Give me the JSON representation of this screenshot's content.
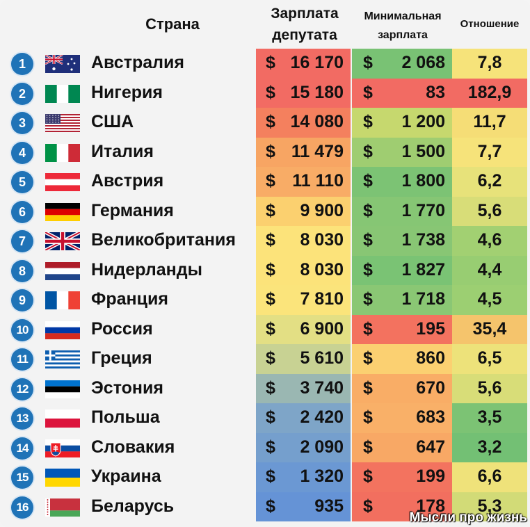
{
  "headers": {
    "country": "Страна",
    "salary": [
      "Зарплата",
      "депутата"
    ],
    "min_wage": [
      "Минимальная",
      "зарплата"
    ],
    "ratio": "Отношение"
  },
  "currency": "$",
  "rows": [
    {
      "rank": "1",
      "flag": "australia",
      "country": "Австралия",
      "salary": "16 170",
      "min_wage": "2 068",
      "ratio": "7,8",
      "salary_color": "#f26b63",
      "min_color": "#79c274",
      "ratio_color": "#f6e37a"
    },
    {
      "rank": "2",
      "flag": "nigeria",
      "country": "Нигерия",
      "salary": "15 180",
      "min_wage": "83",
      "ratio": "182,9",
      "salary_color": "#f26b63",
      "min_color": "#f26b63",
      "ratio_color": "#f26b63"
    },
    {
      "rank": "3",
      "flag": "usa",
      "country": "США",
      "salary": "14 080",
      "min_wage": "1 200",
      "ratio": "11,7",
      "salary_color": "#f4805e",
      "min_color": "#c6d86e",
      "ratio_color": "#f5dd76"
    },
    {
      "rank": "4",
      "flag": "italy",
      "country": "Италия",
      "salary": "11 479",
      "min_wage": "1 500",
      "ratio": "7,7",
      "salary_color": "#f7a563",
      "min_color": "#9fcd71",
      "ratio_color": "#f6e37a"
    },
    {
      "rank": "5",
      "flag": "austria",
      "country": "Австрия",
      "salary": "11 110",
      "min_wage": "1 800",
      "ratio": "6,2",
      "salary_color": "#f8ac66",
      "min_color": "#7cc374",
      "ratio_color": "#e7e27a"
    },
    {
      "rank": "6",
      "flag": "germany",
      "country": "Германия",
      "salary": "9 900",
      "min_wage": "1 770",
      "ratio": "5,6",
      "salary_color": "#fbd06f",
      "min_color": "#86c674",
      "ratio_color": "#d8dd78"
    },
    {
      "rank": "7",
      "flag": "uk",
      "country": "Великобритания",
      "salary": "8 030",
      "min_wage": "1 738",
      "ratio": "4,6",
      "salary_color": "#fce37a",
      "min_color": "#88c674",
      "ratio_color": "#a2d072"
    },
    {
      "rank": "8",
      "flag": "netherlands",
      "country": "Нидерланды",
      "salary": "8 030",
      "min_wage": "1 827",
      "ratio": "4,4",
      "salary_color": "#fce37a",
      "min_color": "#7ac374",
      "ratio_color": "#98cd72"
    },
    {
      "rank": "9",
      "flag": "france",
      "country": "Франция",
      "salary": "7 810",
      "min_wage": "1 718",
      "ratio": "4,5",
      "salary_color": "#fbe47b",
      "min_color": "#8ac774",
      "ratio_color": "#9ccf72"
    },
    {
      "rank": "10",
      "flag": "russia",
      "country": "Россия",
      "salary": "6 900",
      "min_wage": "195",
      "ratio": "35,4",
      "salary_color": "#e3df84",
      "min_color": "#f3725f",
      "ratio_color": "#f5c46c"
    },
    {
      "rank": "11",
      "flag": "greece",
      "country": "Греция",
      "salary": "5 610",
      "min_wage": "860",
      "ratio": "6,5",
      "salary_color": "#c8d293",
      "min_color": "#fbd071",
      "ratio_color": "#ede27a"
    },
    {
      "rank": "12",
      "flag": "estonia",
      "country": "Эстония",
      "salary": "3 740",
      "min_wage": "670",
      "ratio": "5,6",
      "salary_color": "#9ab7b2",
      "min_color": "#f9ad66",
      "ratio_color": "#d8dd78"
    },
    {
      "rank": "13",
      "flag": "poland",
      "country": "Польша",
      "salary": "2 420",
      "min_wage": "683",
      "ratio": "3,5",
      "salary_color": "#7ea5c8",
      "min_color": "#f9b068",
      "ratio_color": "#7cc374"
    },
    {
      "rank": "14",
      "flag": "slovakia",
      "country": "Словакия",
      "salary": "2 090",
      "min_wage": "647",
      "ratio": "3,2",
      "salary_color": "#759fcd",
      "min_color": "#f8a865",
      "ratio_color": "#73c074"
    },
    {
      "rank": "15",
      "flag": "ukraine",
      "country": "Украина",
      "salary": "1 320",
      "min_wage": "199",
      "ratio": "6,6",
      "salary_color": "#6b98d3",
      "min_color": "#f3735f",
      "ratio_color": "#efe27a"
    },
    {
      "rank": "16",
      "flag": "belarus",
      "country": "Беларусь",
      "salary": "935",
      "min_wage": "178",
      "ratio": "5,3",
      "salary_color": "#6593d6",
      "min_color": "#f26f5f",
      "ratio_color": "#d2db77"
    }
  ],
  "watermark": "Мысли про жизнь"
}
